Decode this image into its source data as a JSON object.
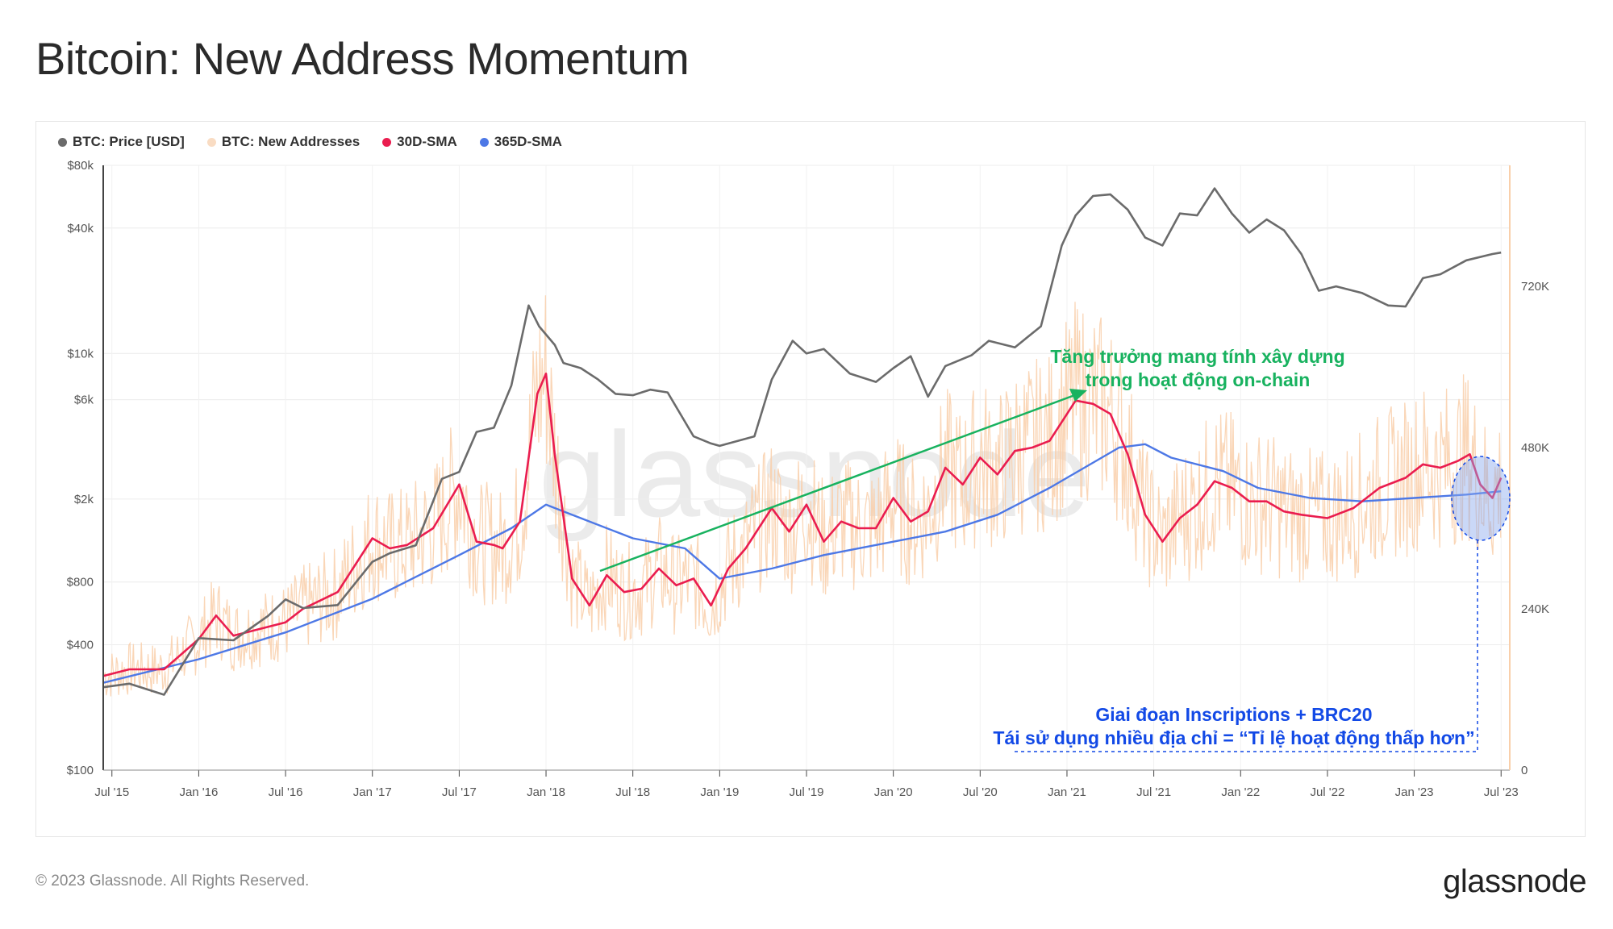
{
  "title": "Bitcoin: New Address Momentum",
  "footer": "© 2023 Glassnode. All Rights Reserved.",
  "brand": "glassnode",
  "watermark": "glassnode",
  "colors": {
    "price": "#6b6b6b",
    "new_addresses": "#f9cfaa",
    "sma30": "#ea1d4f",
    "sma365": "#4d78e6",
    "annotation_green": "#18b25f",
    "annotation_blue": "#1249e6"
  },
  "annotations": {
    "green_line1": "Tăng trưởng mang tính xây dựng",
    "green_line2": "trong hoạt động on-chain",
    "blue_line1": "Giai đoạn Inscriptions + BRC20",
    "blue_line2": "Tái sử dụng nhiều địa chỉ = “Tỉ lệ hoạt động  thấp hơn”"
  },
  "legend": [
    {
      "label": "BTC: Price [USD]",
      "color": "#6b6b6b"
    },
    {
      "label": "BTC: New Addresses",
      "color": "#f9dcc3"
    },
    {
      "label": "30D-SMA",
      "color": "#ea1d4f"
    },
    {
      "label": "365D-SMA",
      "color": "#4d78e6"
    }
  ],
  "chart_data": {
    "type": "line",
    "y_left_scale": "log",
    "y_left_ticks": [
      "$100",
      "$400",
      "$800",
      "$2k",
      "$6k",
      "$10k",
      "$40k",
      "$80k"
    ],
    "y_left_tick_values": [
      100,
      400,
      800,
      2000,
      6000,
      10000,
      40000,
      80000
    ],
    "y_right_ticks": [
      "0",
      "240K",
      "480K",
      "720K"
    ],
    "y_right_tick_values": [
      0,
      240000,
      480000,
      720000
    ],
    "x_ticks": [
      "Jul '15",
      "Jan '16",
      "Jul '16",
      "Jan '17",
      "Jul '17",
      "Jan '18",
      "Jul '18",
      "Jan '19",
      "Jul '19",
      "Jan '20",
      "Jul '20",
      "Jan '21",
      "Jul '21",
      "Jan '22",
      "Jul '22",
      "Jan '23",
      "Jul '23"
    ],
    "x_tick_values": [
      2015.5,
      2016.0,
      2016.5,
      2017.0,
      2017.5,
      2018.0,
      2018.5,
      2019.0,
      2019.5,
      2020.0,
      2020.5,
      2021.0,
      2021.5,
      2022.0,
      2022.5,
      2023.0,
      2023.5
    ],
    "x_range": [
      2015.45,
      2023.55
    ],
    "y_left_range": [
      100,
      80000
    ],
    "y_right_range": [
      0,
      900000
    ],
    "series": [
      {
        "name": "BTC: Price [USD]",
        "axis": "left",
        "x": [
          2015.45,
          2015.6,
          2015.8,
          2016.0,
          2016.2,
          2016.4,
          2016.5,
          2016.6,
          2016.8,
          2017.0,
          2017.1,
          2017.25,
          2017.4,
          2017.5,
          2017.6,
          2017.7,
          2017.8,
          2017.9,
          2017.96,
          2018.05,
          2018.1,
          2018.2,
          2018.3,
          2018.4,
          2018.5,
          2018.6,
          2018.7,
          2018.85,
          2018.95,
          2019.0,
          2019.2,
          2019.3,
          2019.42,
          2019.5,
          2019.6,
          2019.75,
          2019.9,
          2020.0,
          2020.1,
          2020.2,
          2020.3,
          2020.45,
          2020.55,
          2020.7,
          2020.85,
          2020.97,
          2021.05,
          2021.15,
          2021.25,
          2021.35,
          2021.45,
          2021.55,
          2021.65,
          2021.75,
          2021.85,
          2021.95,
          2022.05,
          2022.15,
          2022.25,
          2022.35,
          2022.45,
          2022.55,
          2022.7,
          2022.85,
          2022.95,
          2023.05,
          2023.15,
          2023.3,
          2023.45,
          2023.5
        ],
        "y": [
          250,
          260,
          230,
          430,
          420,
          550,
          660,
          600,
          620,
          1000,
          1100,
          1200,
          2500,
          2700,
          4200,
          4400,
          7000,
          17000,
          13500,
          11000,
          9000,
          8500,
          7500,
          6400,
          6300,
          6700,
          6500,
          4000,
          3700,
          3600,
          4000,
          7500,
          11500,
          10000,
          10500,
          8000,
          7300,
          8500,
          9700,
          6200,
          8700,
          9800,
          11500,
          10700,
          13500,
          33000,
          46000,
          57000,
          58000,
          49000,
          36000,
          33000,
          47000,
          46000,
          62000,
          47000,
          38000,
          44000,
          39000,
          30000,
          20000,
          21000,
          19500,
          17000,
          16800,
          23000,
          24000,
          28000,
          30000,
          30500
        ]
      },
      {
        "name": "30D-SMA",
        "axis": "right",
        "x": [
          2015.45,
          2015.6,
          2015.8,
          2016.0,
          2016.1,
          2016.2,
          2016.35,
          2016.5,
          2016.6,
          2016.8,
          2017.0,
          2017.1,
          2017.2,
          2017.35,
          2017.5,
          2017.6,
          2017.7,
          2017.75,
          2017.85,
          2017.95,
          2018.0,
          2018.05,
          2018.15,
          2018.25,
          2018.35,
          2018.45,
          2018.55,
          2018.65,
          2018.75,
          2018.85,
          2018.95,
          2019.05,
          2019.15,
          2019.3,
          2019.4,
          2019.5,
          2019.6,
          2019.7,
          2019.8,
          2019.9,
          2020.0,
          2020.1,
          2020.2,
          2020.3,
          2020.4,
          2020.5,
          2020.6,
          2020.7,
          2020.8,
          2020.9,
          2021.0,
          2021.05,
          2021.15,
          2021.25,
          2021.35,
          2021.45,
          2021.55,
          2021.65,
          2021.75,
          2021.85,
          2021.95,
          2022.05,
          2022.15,
          2022.25,
          2022.35,
          2022.5,
          2022.65,
          2022.8,
          2022.95,
          2023.05,
          2023.15,
          2023.25,
          2023.32,
          2023.38,
          2023.45,
          2023.5
        ],
        "y": [
          140000,
          150000,
          150000,
          195000,
          230000,
          200000,
          210000,
          220000,
          240000,
          265000,
          345000,
          330000,
          335000,
          360000,
          425000,
          340000,
          335000,
          330000,
          370000,
          560000,
          590000,
          470000,
          285000,
          245000,
          290000,
          265000,
          270000,
          300000,
          275000,
          285000,
          245000,
          300000,
          330000,
          390000,
          355000,
          395000,
          340000,
          370000,
          360000,
          360000,
          405000,
          370000,
          385000,
          450000,
          425000,
          465000,
          440000,
          475000,
          480000,
          490000,
          530000,
          550000,
          545000,
          530000,
          470000,
          380000,
          340000,
          375000,
          395000,
          430000,
          420000,
          400000,
          400000,
          385000,
          380000,
          375000,
          390000,
          420000,
          435000,
          455000,
          450000,
          460000,
          470000,
          425000,
          405000,
          435000
        ]
      },
      {
        "name": "365D-SMA",
        "axis": "right",
        "x": [
          2015.45,
          2016.0,
          2016.5,
          2017.0,
          2017.5,
          2017.8,
          2018.0,
          2018.2,
          2018.5,
          2018.8,
          2019.0,
          2019.3,
          2019.6,
          2020.0,
          2020.3,
          2020.6,
          2020.9,
          2021.1,
          2021.3,
          2021.45,
          2021.6,
          2021.9,
          2022.1,
          2022.4,
          2022.7,
          2023.0,
          2023.3,
          2023.5
        ],
        "y": [
          130000,
          165000,
          205000,
          255000,
          320000,
          360000,
          395000,
          375000,
          345000,
          330000,
          285000,
          300000,
          320000,
          340000,
          355000,
          380000,
          420000,
          450000,
          480000,
          485000,
          465000,
          445000,
          420000,
          405000,
          400000,
          405000,
          410000,
          415000
        ]
      }
    ]
  }
}
